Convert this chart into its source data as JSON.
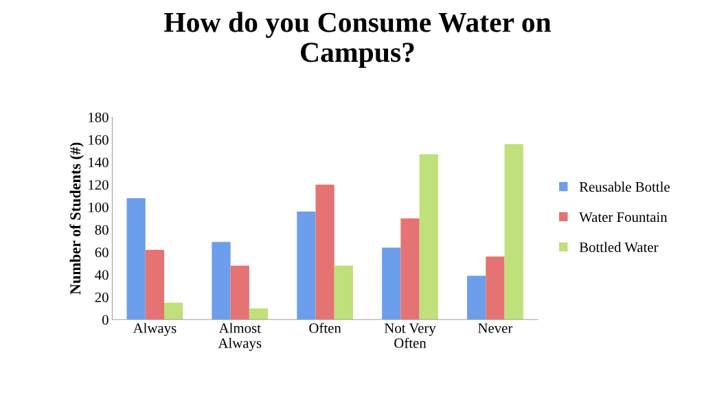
{
  "chart_data": {
    "type": "bar",
    "title": "How do you Consume Water on\nCampus?",
    "ylabel": "Number of Students (#)",
    "categories": [
      "Always",
      "Almost\nAlways",
      "Often",
      "Not Very\nOften",
      "Never"
    ],
    "series": [
      {
        "name": "Reusable Bottle",
        "color": "#6d9eeb",
        "values": [
          108,
          69,
          96,
          64,
          39
        ]
      },
      {
        "name": "Water Fountain",
        "color": "#e57373",
        "values": [
          62,
          48,
          120,
          90,
          56
        ]
      },
      {
        "name": "Bottled Water",
        "color": "#bfe07a",
        "values": [
          15,
          10,
          48,
          147,
          156
        ]
      }
    ],
    "ylim": [
      0,
      180
    ],
    "yticks": [
      0,
      20,
      40,
      60,
      80,
      100,
      120,
      140,
      160,
      180
    ],
    "grid": false,
    "legend": "right"
  }
}
